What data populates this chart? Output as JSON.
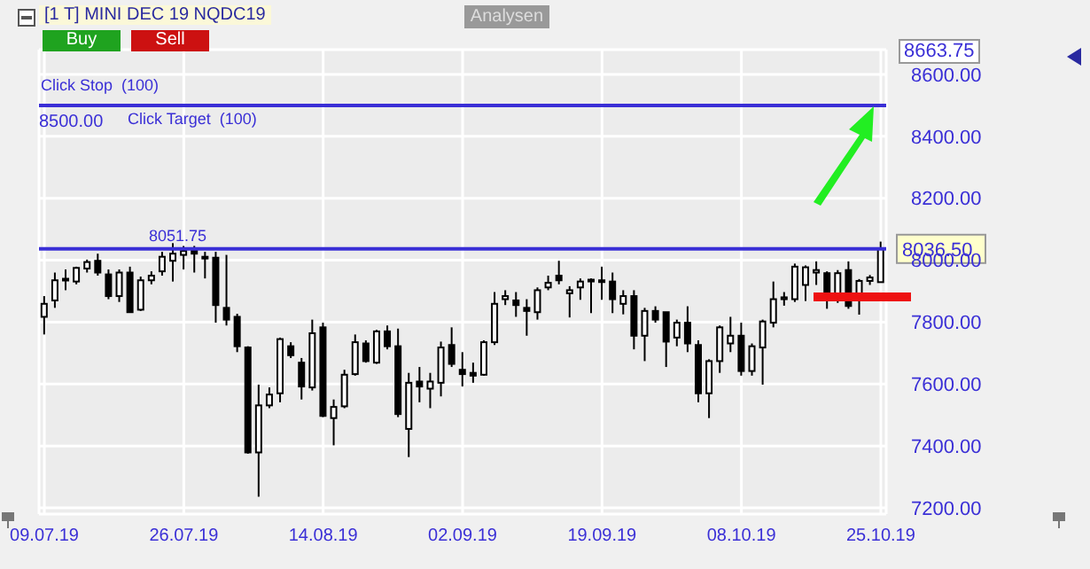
{
  "chart_data": {
    "type": "candlestick",
    "title": "[1 T] MINI DEC 19  NQDC19",
    "categories": [
      "09.07.19",
      null,
      null,
      null,
      null,
      null,
      null,
      null,
      null,
      null,
      null,
      null,
      null,
      "26.07.19",
      null,
      null,
      null,
      null,
      null,
      null,
      null,
      null,
      null,
      null,
      null,
      null,
      "14.08.19",
      null,
      null,
      null,
      null,
      null,
      null,
      null,
      null,
      null,
      null,
      null,
      null,
      "02.09.19",
      null,
      null,
      null,
      null,
      null,
      null,
      null,
      null,
      null,
      null,
      null,
      null,
      "19.09.19",
      null,
      null,
      null,
      null,
      null,
      null,
      null,
      null,
      null,
      null,
      null,
      null,
      "08.10.19",
      null,
      null,
      null,
      null,
      null,
      null,
      null,
      null,
      null,
      null,
      null,
      null,
      "25.10.19"
    ],
    "series": [
      {
        "color": "#000000",
        "ohlc": [
          [
            7817,
            7884,
            7760,
            7859
          ],
          [
            7870,
            7960,
            7846,
            7935
          ],
          [
            7935,
            7970,
            7903,
            7940
          ],
          [
            7931,
            7979,
            7922,
            7975
          ],
          [
            7973,
            8002,
            7960,
            7994
          ],
          [
            7998,
            8021,
            7950,
            7960
          ],
          [
            7954,
            7970,
            7874,
            7884
          ],
          [
            7884,
            7970,
            7865,
            7960
          ],
          [
            7960,
            7979,
            7832,
            7832
          ],
          [
            7840,
            7947,
            7836,
            7935
          ],
          [
            7935,
            7964,
            7922,
            7950
          ],
          [
            7964,
            8027,
            7950,
            8011
          ],
          [
            7998,
            8055,
            7931,
            8021
          ],
          [
            8017,
            8046,
            7970,
            8030
          ],
          [
            8032,
            8046,
            7960,
            8021
          ],
          [
            8011,
            8027,
            7941,
            8008
          ],
          [
            8008,
            8027,
            7798,
            7855
          ],
          [
            7846,
            8017,
            7789,
            7808
          ],
          [
            7817,
            7827,
            7703,
            7722
          ],
          [
            7718,
            7722,
            7375,
            7379
          ],
          [
            7379,
            7598,
            7236,
            7531
          ],
          [
            7531,
            7589,
            7522,
            7566
          ],
          [
            7570,
            7750,
            7541,
            7745
          ],
          [
            7722,
            7735,
            7684,
            7693
          ],
          [
            7669,
            7684,
            7550,
            7592
          ],
          [
            7589,
            7808,
            7579,
            7764
          ],
          [
            7783,
            7798,
            7493,
            7497
          ],
          [
            7490,
            7550,
            7402,
            7526
          ],
          [
            7528,
            7646,
            7522,
            7630
          ],
          [
            7632,
            7760,
            7627,
            7735
          ],
          [
            7731,
            7741,
            7669,
            7674
          ],
          [
            7669,
            7775,
            7665,
            7770
          ],
          [
            7770,
            7789,
            7712,
            7722
          ],
          [
            7722,
            7779,
            7493,
            7503
          ],
          [
            7455,
            7636,
            7364,
            7604
          ],
          [
            7608,
            7655,
            7541,
            7592
          ],
          [
            7585,
            7636,
            7522,
            7608
          ],
          [
            7604,
            7737,
            7560,
            7718
          ],
          [
            7726,
            7783,
            7655,
            7665
          ],
          [
            7646,
            7703,
            7592,
            7632
          ],
          [
            7636,
            7669,
            7604,
            7627
          ],
          [
            7630,
            7741,
            7627,
            7735
          ],
          [
            7735,
            7897,
            7726,
            7859
          ],
          [
            7874,
            7903,
            7855,
            7884
          ],
          [
            7870,
            7897,
            7817,
            7855
          ],
          [
            7846,
            7874,
            7756,
            7836
          ],
          [
            7832,
            7912,
            7808,
            7903
          ],
          [
            7912,
            7950,
            7903,
            7927
          ],
          [
            7950,
            7998,
            7922,
            7935
          ],
          [
            7893,
            7916,
            7815,
            7903
          ],
          [
            7912,
            7941,
            7872,
            7931
          ],
          [
            7937,
            7941,
            7829,
            7935
          ],
          [
            7935,
            7979,
            7872,
            7933
          ],
          [
            7931,
            7960,
            7829,
            7874
          ],
          [
            7859,
            7903,
            7825,
            7884
          ],
          [
            7884,
            7903,
            7712,
            7756
          ],
          [
            7756,
            7846,
            7674,
            7836
          ],
          [
            7836,
            7851,
            7798,
            7808
          ],
          [
            7832,
            7832,
            7655,
            7737
          ],
          [
            7750,
            7808,
            7722,
            7798
          ],
          [
            7798,
            7851,
            7703,
            7731
          ],
          [
            7726,
            7741,
            7541,
            7570
          ],
          [
            7570,
            7680,
            7490,
            7674
          ],
          [
            7674,
            7789,
            7636,
            7783
          ],
          [
            7731,
            7817,
            7703,
            7756
          ],
          [
            7756,
            7798,
            7627,
            7642
          ],
          [
            7642,
            7731,
            7627,
            7722
          ],
          [
            7718,
            7808,
            7598,
            7802
          ],
          [
            7798,
            7931,
            7783,
            7874
          ],
          [
            7874,
            7897,
            7853,
            7880
          ],
          [
            7874,
            7989,
            7865,
            7979
          ],
          [
            7920,
            7983,
            7868,
            7977
          ],
          [
            7960,
            7996,
            7920,
            7968
          ],
          [
            7958,
            7964,
            7843,
            7891
          ],
          [
            7891,
            7968,
            7862,
            7958
          ],
          [
            7968,
            7996,
            7843,
            7852
          ],
          [
            7881,
            7939,
            7824,
            7933
          ],
          [
            7933,
            7952,
            7920,
            7944
          ],
          [
            7929,
            8060,
            7929,
            8036
          ]
        ]
      }
    ],
    "ylim": [
      7180,
      8680
    ],
    "yticks": [
      {
        "value": 7200,
        "label": "7200.00"
      },
      {
        "value": 7400,
        "label": "7400.00"
      },
      {
        "value": 7600,
        "label": "7600.00"
      },
      {
        "value": 7800,
        "label": "7800.00"
      },
      {
        "value": 8000,
        "label": "8000.00"
      },
      {
        "value": 8200,
        "label": "8200.00"
      },
      {
        "value": 8400,
        "label": "8400.00"
      },
      {
        "value": 8600,
        "label": "8600.00"
      }
    ],
    "ref_lines": [
      {
        "axis": "y",
        "value": 8500,
        "label": "8500.00",
        "color": "#3a2fd6"
      },
      {
        "axis": "y",
        "value": 8036.5,
        "label": "8036.50",
        "color": "#3a2fd6"
      }
    ],
    "annotations": [
      "Buy",
      "Sell",
      "Analysen",
      "Click Stop  (100)",
      "Click Target  (100)",
      "8051.75",
      "8663.75"
    ],
    "grid": true
  }
}
